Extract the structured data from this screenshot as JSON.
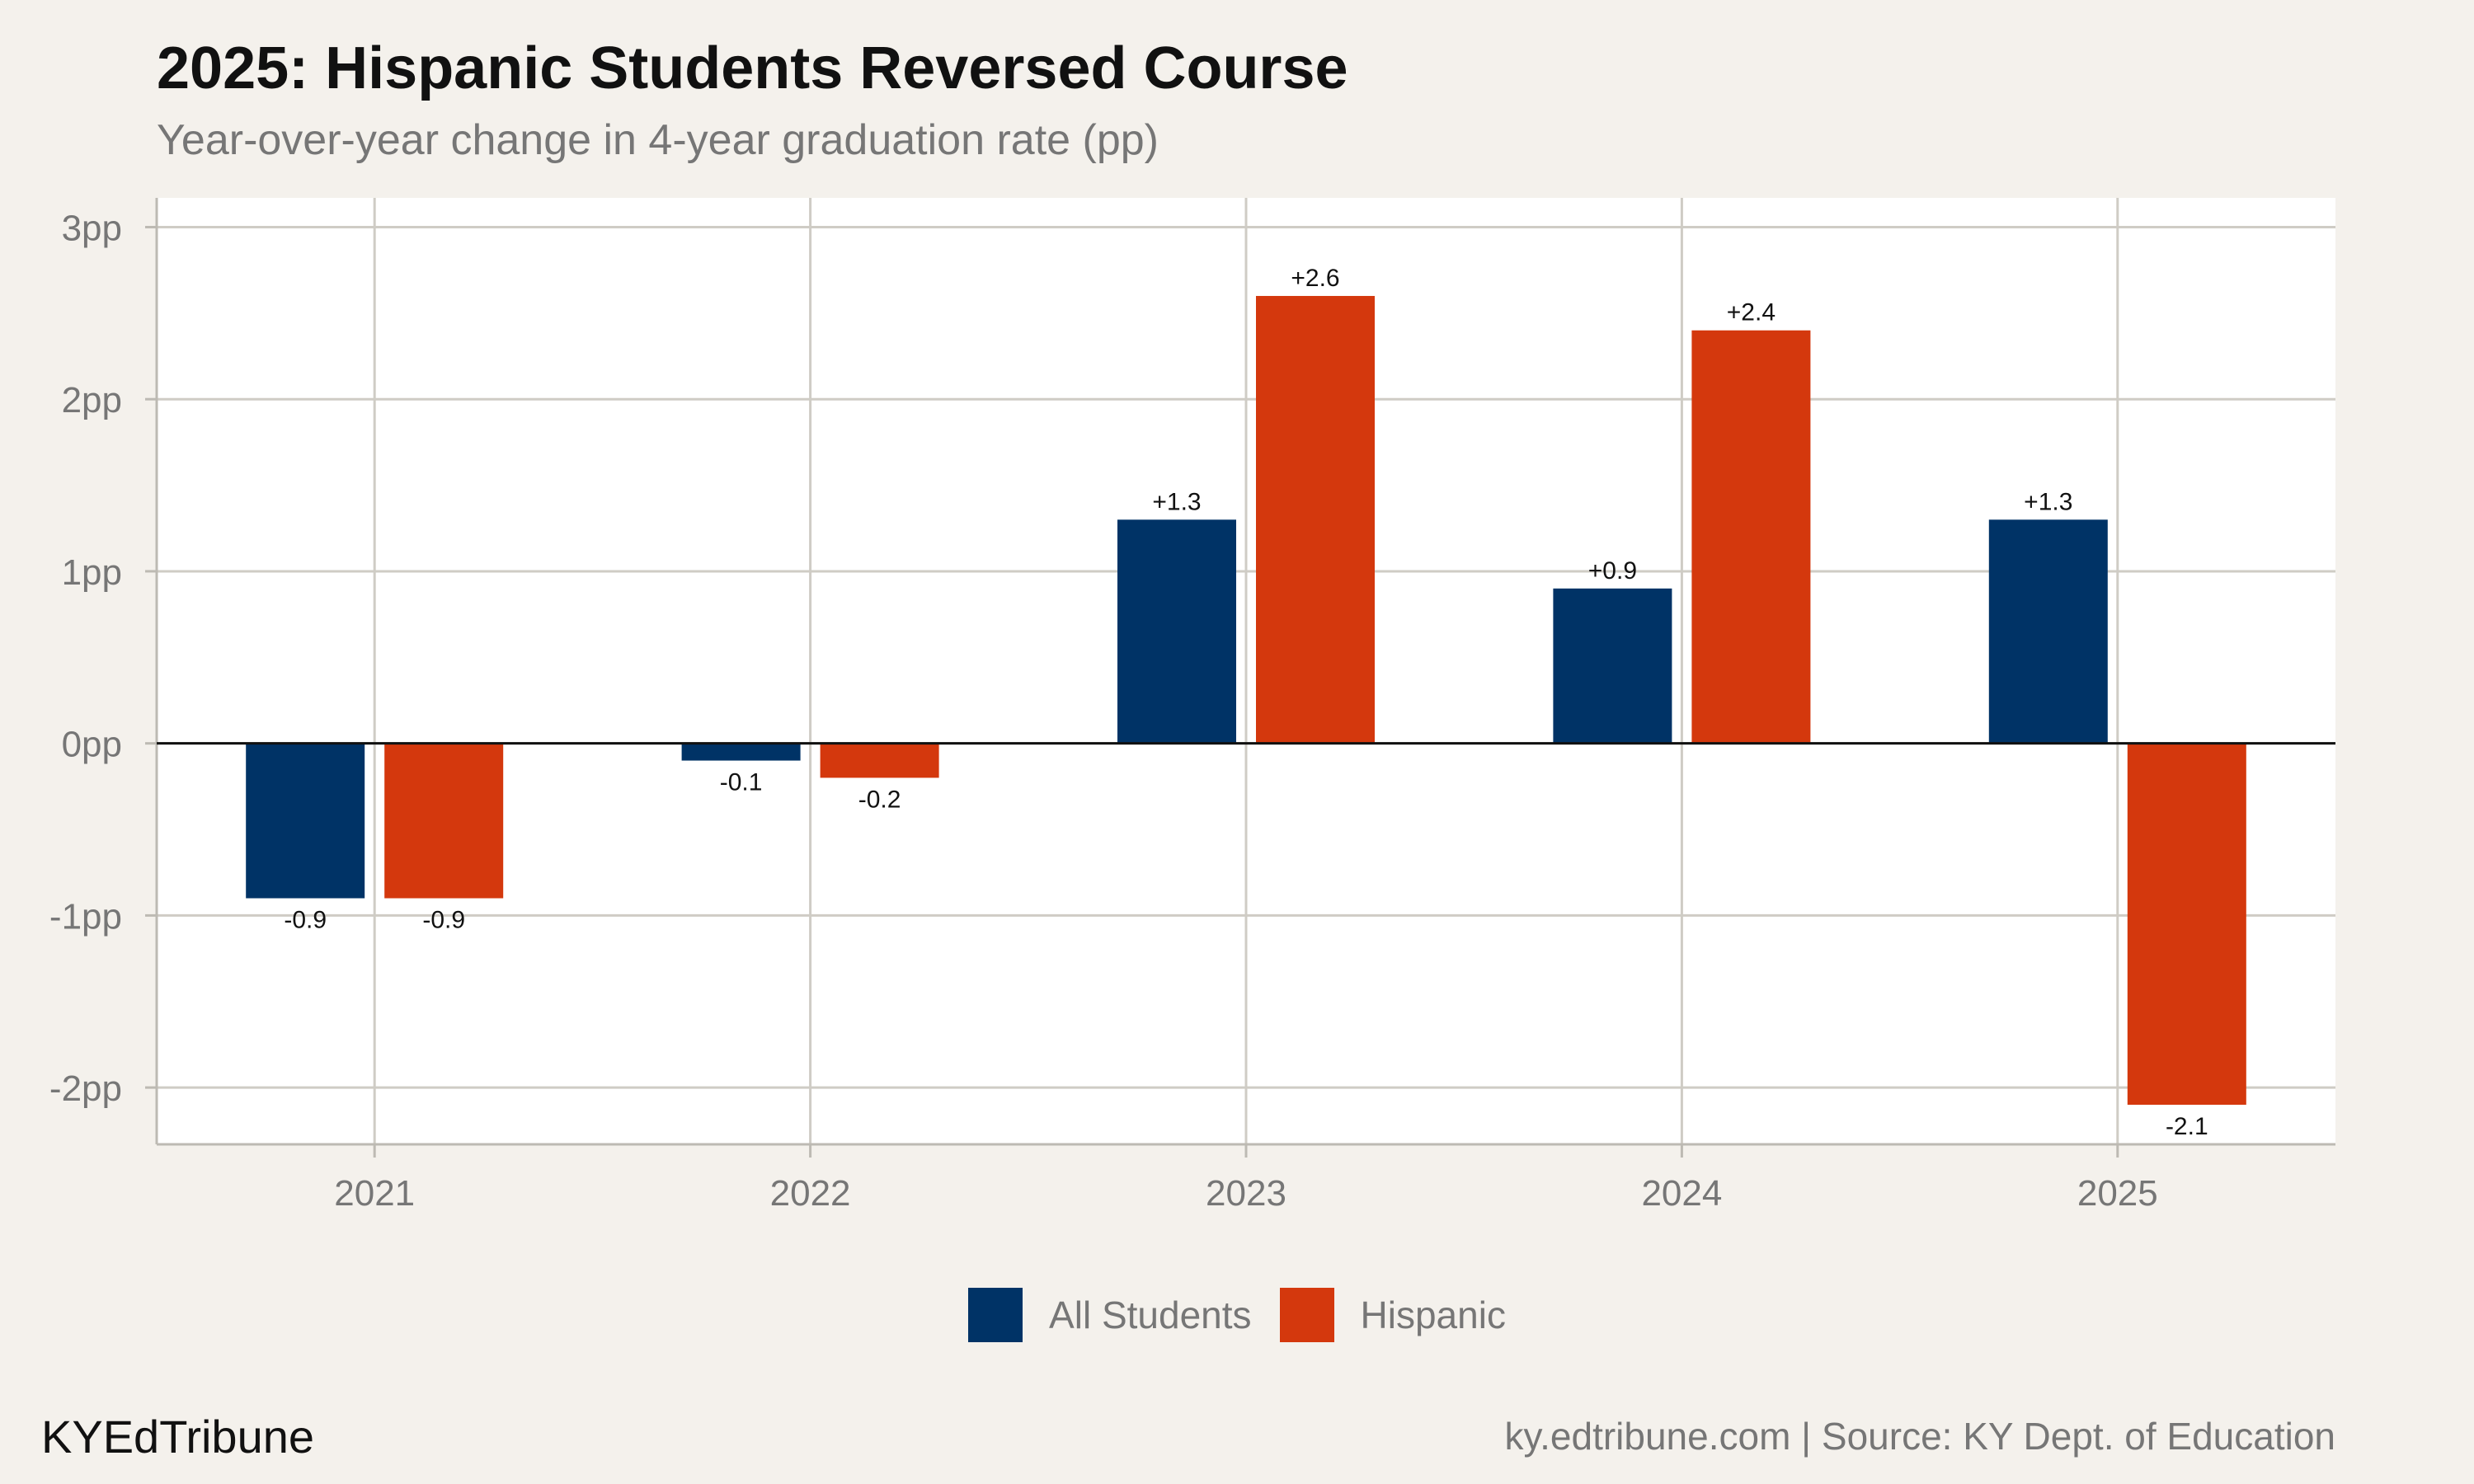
{
  "header": {
    "title": "2025: Hispanic Students Reversed Course",
    "subtitle": "Year-over-year change in 4-year graduation rate (pp)"
  },
  "footer": {
    "brand": "KYEdTribune",
    "source": "ky.edtribune.com | Source: KY Dept. of Education"
  },
  "legend": [
    {
      "label": "All Students",
      "color": "#003366"
    },
    {
      "label": "Hispanic",
      "color": "#d4380d"
    }
  ],
  "chart_data": {
    "type": "bar",
    "title": "2025: Hispanic Students Reversed Course",
    "subtitle": "Year-over-year change in 4-year graduation rate (pp)",
    "categories": [
      "2021",
      "2022",
      "2023",
      "2024",
      "2025"
    ],
    "series": [
      {
        "name": "All Students",
        "color": "#003366",
        "values": [
          -0.9,
          -0.1,
          1.3,
          0.9,
          1.3
        ],
        "labels": [
          "-0.9",
          "-0.1",
          "+1.3",
          "+0.9",
          "+1.3"
        ]
      },
      {
        "name": "Hispanic",
        "color": "#d4380d",
        "values": [
          -0.9,
          -0.2,
          2.6,
          2.4,
          -2.1
        ],
        "labels": [
          "-0.9",
          "-0.2",
          "+2.6",
          "+2.4",
          "-2.1"
        ]
      }
    ],
    "yticks": [
      -2,
      -1,
      0,
      1,
      2,
      3
    ],
    "ytick_labels": [
      "-2pp",
      "-1pp",
      "0pp",
      "1pp",
      "2pp",
      "3pp"
    ],
    "ylim": [
      -2.33,
      3.17
    ],
    "grid": true,
    "legend_position": "bottom"
  }
}
